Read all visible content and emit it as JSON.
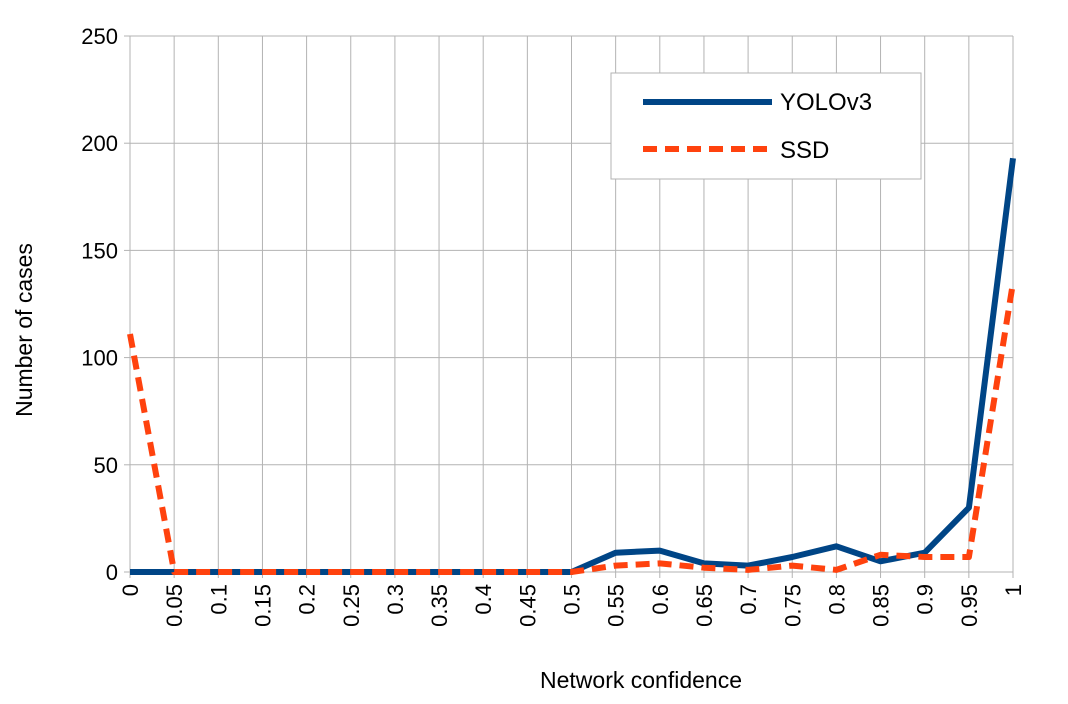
{
  "chart_data": {
    "type": "line",
    "title": "",
    "xlabel": "Network confidence",
    "ylabel": "Number of cases",
    "x": [
      "0",
      "0.05",
      "0.1",
      "0.15",
      "0.2",
      "0.25",
      "0.3",
      "0.35",
      "0.4",
      "0.45",
      "0.5",
      "0.55",
      "0.6",
      "0.65",
      "0.7",
      "0.75",
      "0.8",
      "0.85",
      "0.9",
      "0.95",
      "1"
    ],
    "y_ticks": [
      "0",
      "50",
      "100",
      "150",
      "200",
      "250"
    ],
    "ylim": [
      0,
      250
    ],
    "grid": true,
    "legend_position": "top-right",
    "series": [
      {
        "name": "YOLOv3",
        "color": "#004586",
        "dash": "solid",
        "values": [
          0,
          0,
          0,
          0,
          0,
          0,
          0,
          0,
          0,
          0,
          0,
          9,
          10,
          4,
          3,
          7,
          12,
          5,
          9,
          30,
          193
        ]
      },
      {
        "name": "SSD",
        "color": "#ff420e",
        "dash": "dashed",
        "values": [
          111,
          0,
          0,
          0,
          0,
          0,
          0,
          0,
          0,
          0,
          0,
          3,
          4,
          2,
          1,
          3,
          1,
          8,
          7,
          7,
          135
        ]
      }
    ]
  }
}
